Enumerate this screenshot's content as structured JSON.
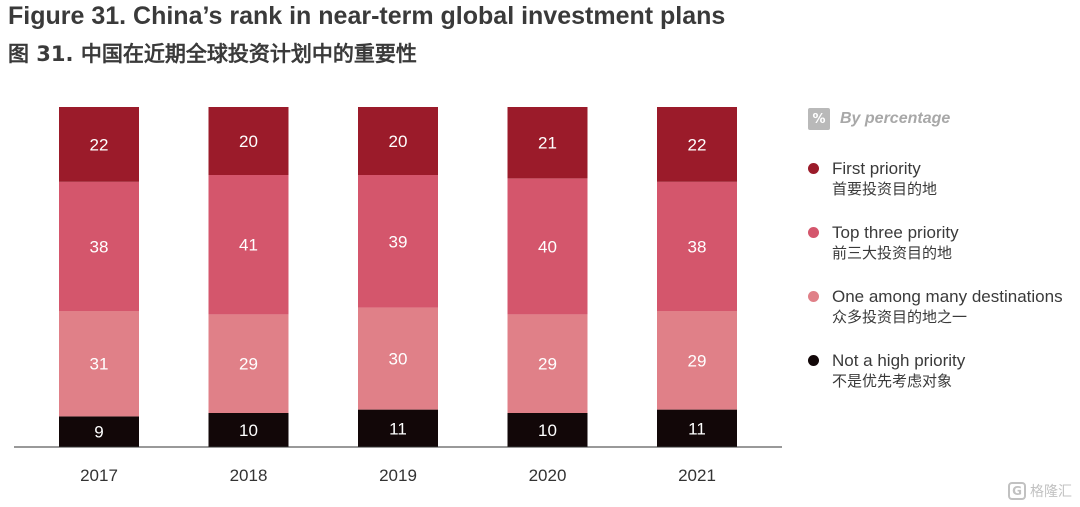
{
  "title_en": "Figure 31. China’s rank in near-term global investment plans",
  "title_cn": "图 31. 中国在近期全球投资计划中的重要性",
  "legend": {
    "badge": "%",
    "title": "By percentage"
  },
  "watermark": {
    "icon": "G",
    "text": "格隆汇"
  },
  "colors": {
    "first_priority": "#9b1b2a",
    "top_three": "#d4566c",
    "one_among_many": "#e08088",
    "not_high": "#120708",
    "axis": "#333333"
  },
  "chart_data": {
    "type": "bar",
    "stacked": true,
    "categories": [
      "2017",
      "2018",
      "2019",
      "2020",
      "2021"
    ],
    "ylim": [
      0,
      100
    ],
    "series": [
      {
        "key": "not_high",
        "name": "Not a high priority",
        "name_cn": "不是优先考虑对象",
        "color": "#120708",
        "values": [
          9,
          10,
          11,
          10,
          11
        ]
      },
      {
        "key": "one_among_many",
        "name": "One among many destinations",
        "name_cn": "众多投资目的地之一",
        "color": "#e08088",
        "values": [
          31,
          29,
          30,
          29,
          29
        ]
      },
      {
        "key": "top_three",
        "name": "Top three priority",
        "name_cn": "前三大投资目的地",
        "color": "#d4566c",
        "values": [
          38,
          41,
          39,
          40,
          38
        ]
      },
      {
        "key": "first_priority",
        "name": "First priority",
        "name_cn": "首要投资目的地",
        "color": "#9b1b2a",
        "values": [
          22,
          20,
          20,
          21,
          22
        ]
      }
    ],
    "legend_position": "right",
    "grid": false
  }
}
